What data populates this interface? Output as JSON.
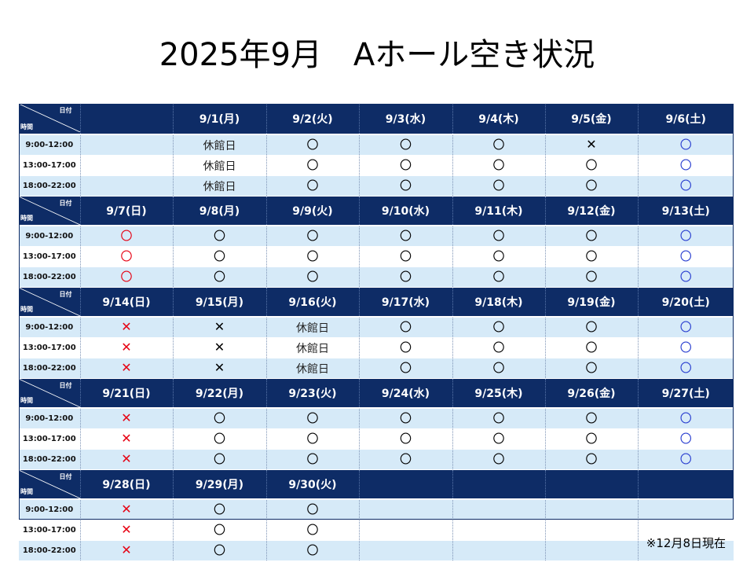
{
  "title": "2025年9月　Aホール空き状況",
  "corner": {
    "date_label": "日付",
    "time_label": "時間"
  },
  "note": "※12月8日現在",
  "legend_symbols": {
    "available": "〇",
    "booked": "✕",
    "closed": "休館日"
  },
  "colors": {
    "header_bg": "#0e2c66",
    "row_blue": "#d6eaf8",
    "saturday_blue": "#2a3fd0",
    "sunday_red": "#e60012"
  },
  "time_slots": [
    "9:00-12:00",
    "13:00-17:00",
    "18:00-22:00"
  ],
  "weeks": [
    {
      "dates": [
        "",
        "9/1(月)",
        "9/2(火)",
        "9/3(水)",
        "9/4(木)",
        "9/5(金)",
        "9/6(土)"
      ],
      "slots": [
        [
          "",
          "休館日",
          "〇",
          "〇",
          "〇",
          "✕",
          "〇"
        ],
        [
          "",
          "休館日",
          "〇",
          "〇",
          "〇",
          "〇",
          "〇"
        ],
        [
          "",
          "休館日",
          "〇",
          "〇",
          "〇",
          "〇",
          "〇"
        ]
      ]
    },
    {
      "dates": [
        "9/7(日)",
        "9/8(月)",
        "9/9(火)",
        "9/10(水)",
        "9/11(木)",
        "9/12(金)",
        "9/13(土)"
      ],
      "slots": [
        [
          "〇",
          "〇",
          "〇",
          "〇",
          "〇",
          "〇",
          "〇"
        ],
        [
          "〇",
          "〇",
          "〇",
          "〇",
          "〇",
          "〇",
          "〇"
        ],
        [
          "〇",
          "〇",
          "〇",
          "〇",
          "〇",
          "〇",
          "〇"
        ]
      ]
    },
    {
      "dates": [
        "9/14(日)",
        "9/15(月)",
        "9/16(火)",
        "9/17(水)",
        "9/18(木)",
        "9/19(金)",
        "9/20(土)"
      ],
      "slots": [
        [
          "✕",
          "✕",
          "休館日",
          "〇",
          "〇",
          "〇",
          "〇"
        ],
        [
          "✕",
          "✕",
          "休館日",
          "〇",
          "〇",
          "〇",
          "〇"
        ],
        [
          "✕",
          "✕",
          "休館日",
          "〇",
          "〇",
          "〇",
          "〇"
        ]
      ]
    },
    {
      "dates": [
        "9/21(日)",
        "9/22(月)",
        "9/23(火)",
        "9/24(水)",
        "9/25(木)",
        "9/26(金)",
        "9/27(土)"
      ],
      "slots": [
        [
          "✕",
          "〇",
          "〇",
          "〇",
          "〇",
          "〇",
          "〇"
        ],
        [
          "✕",
          "〇",
          "〇",
          "〇",
          "〇",
          "〇",
          "〇"
        ],
        [
          "✕",
          "〇",
          "〇",
          "〇",
          "〇",
          "〇",
          "〇"
        ]
      ]
    },
    {
      "dates": [
        "9/28(日)",
        "9/29(月)",
        "9/30(火)",
        "",
        "",
        "",
        ""
      ],
      "slots": [
        [
          "✕",
          "〇",
          "〇",
          "",
          "",
          "",
          ""
        ],
        [
          "✕",
          "〇",
          "〇",
          "",
          "",
          "",
          ""
        ],
        [
          "✕",
          "〇",
          "〇",
          "",
          "",
          "",
          ""
        ]
      ]
    }
  ]
}
